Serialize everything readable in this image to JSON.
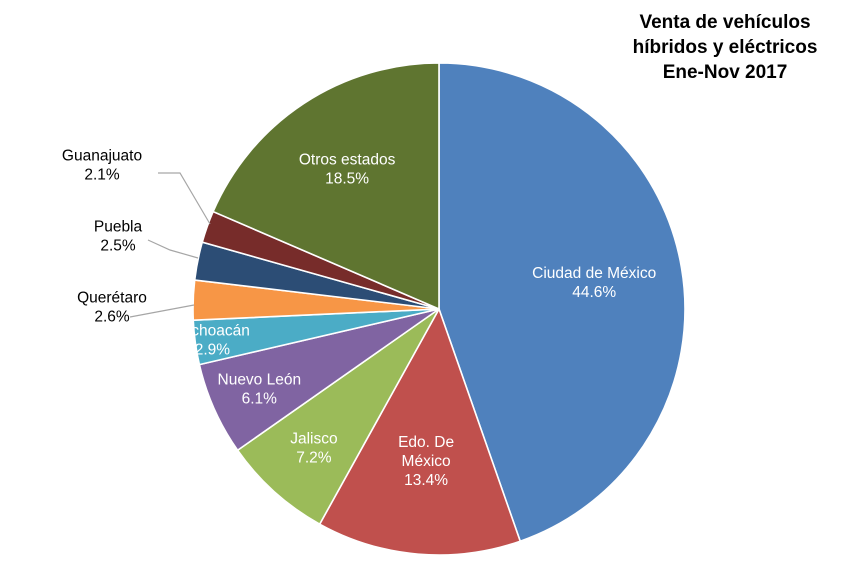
{
  "chart_data": {
    "type": "pie",
    "title_lines": [
      "Venta de vehículos",
      "híbridos y eléctricos",
      "Ene-Nov 2017"
    ],
    "unit": "%",
    "slices": [
      {
        "label_lines": [
          "Ciudad de México"
        ],
        "value": 44.6,
        "value_text": "44.6%",
        "color": "#4f81bd",
        "label_position": "inside"
      },
      {
        "label_lines": [
          "Edo. De",
          "México"
        ],
        "value": 13.4,
        "value_text": "13.4%",
        "color": "#c0504d",
        "label_position": "inside"
      },
      {
        "label_lines": [
          "Jalisco"
        ],
        "value": 7.2,
        "value_text": "7.2%",
        "color": "#9bbb59",
        "label_position": "inside"
      },
      {
        "label_lines": [
          "Nuevo León"
        ],
        "value": 6.1,
        "value_text": "6.1%",
        "color": "#8064a2",
        "label_position": "inside"
      },
      {
        "label_lines": [
          "Michoacán"
        ],
        "value": 2.9,
        "value_text": "2.9%",
        "color": "#4bacc6",
        "label_position": "inside"
      },
      {
        "label_lines": [
          "Querétaro"
        ],
        "value": 2.6,
        "value_text": "2.6%",
        "color": "#f79646",
        "label_position": "outside"
      },
      {
        "label_lines": [
          "Puebla"
        ],
        "value": 2.5,
        "value_text": "2.5%",
        "color": "#2c4d75",
        "label_position": "outside"
      },
      {
        "label_lines": [
          "Guanajuato"
        ],
        "value": 2.1,
        "value_text": "2.1%",
        "color": "#772c2a",
        "label_position": "outside"
      },
      {
        "label_lines": [
          "Otros estados"
        ],
        "value": 18.5,
        "value_text": "18.5%",
        "color": "#5f7530",
        "label_position": "inside"
      }
    ]
  }
}
